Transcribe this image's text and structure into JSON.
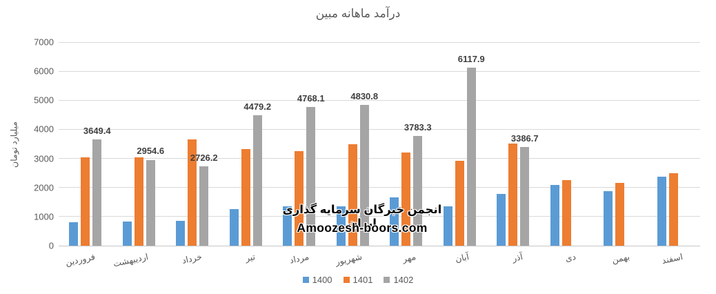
{
  "title": "درآمد ماهانه مبین",
  "watermark": {
    "line1": "انجمن خبرگان سرمایه گذاری ایران",
    "line2": "Amoozesh-boors.com"
  },
  "colors": {
    "series_1400": "#5B9BD5",
    "series_1401": "#ED7D31",
    "series_1402": "#A5A5A5",
    "gridline": "#D9D9D9",
    "axis_text": "#595959",
    "data_label": "#404040",
    "background": "#FFFFFF"
  },
  "chart_data": {
    "type": "bar",
    "title": "درآمد ماهانه مبین",
    "xlabel": "",
    "ylabel": "میلیارد تومان",
    "ylim": [
      0,
      7000
    ],
    "ytick_step": 1000,
    "yticks": [
      "0",
      "1000",
      "2000",
      "3000",
      "4000",
      "5000",
      "6000",
      "7000"
    ],
    "grid": true,
    "legend_position": "bottom",
    "categories": [
      "فروردین",
      "اردیبهشت",
      "خرداد",
      "تیر",
      "مرداد",
      "شهریور",
      "مهر",
      "آبان",
      "آذر",
      "دی",
      "بهمن",
      "اسفند"
    ],
    "series": [
      {
        "name": "1400",
        "color": "#5B9BD5",
        "values": [
          800,
          840,
          850,
          1250,
          1360,
          1360,
          1660,
          1350,
          1780,
          2100,
          1870,
          2380
        ],
        "data_labels": false
      },
      {
        "name": "1401",
        "color": "#ED7D31",
        "values": [
          3030,
          3030,
          3660,
          3320,
          3250,
          3480,
          3200,
          2920,
          3520,
          2260,
          2170,
          2500
        ],
        "data_labels": false
      },
      {
        "name": "1402",
        "color": "#A5A5A5",
        "values": [
          3649.4,
          2954.6,
          2726.2,
          4479.2,
          4768.1,
          4830.8,
          3783.3,
          6117.9,
          3386.7,
          null,
          null,
          null
        ],
        "data_labels": true,
        "label_texts": [
          "3649.4",
          "2954.6",
          "2726.2",
          "4479.2",
          "4768.1",
          "4830.8",
          "3783.3",
          "6117.9",
          "3386.7",
          "",
          "",
          ""
        ]
      }
    ]
  }
}
